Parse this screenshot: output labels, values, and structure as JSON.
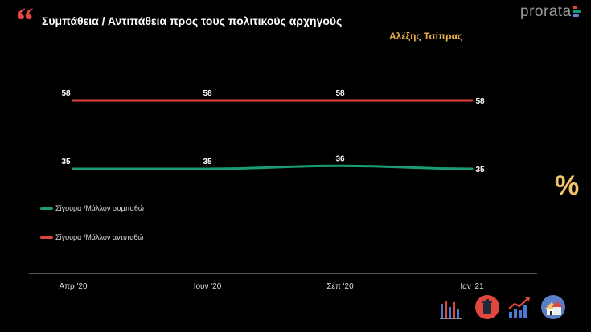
{
  "header": {
    "title": "Συμπάθεια / Αντιπάθεια προς τους πολιτικούς αρχηγούς",
    "subtitle": "Αλέξης Τσίπρας",
    "brand": "prorata"
  },
  "colors": {
    "title": "#ffffff",
    "subtitle": "#e8b04b",
    "quote": "#e0483e",
    "percent": "#f2c46d",
    "axis": "#aaaaaa"
  },
  "chart_data": {
    "type": "line",
    "title": "Συμπάθεια / Αντιπάθεια προς τους πολιτικούς αρχηγούς",
    "subtitle": "Αλέξης Τσίπρας",
    "categories": [
      "Απρ '20",
      "Ιουν '20",
      "Σεπ '20",
      "Ιαν '21"
    ],
    "series": [
      {
        "name": "Σίγουρα /Μάλλον συμπαθώ",
        "values": [
          35,
          35,
          36,
          35
        ],
        "color": "#1a9c78"
      },
      {
        "name": "Σίγουρα /Μάλλον αντιπαθώ",
        "values": [
          58,
          58,
          58,
          58
        ],
        "color": "#e0483e"
      }
    ],
    "grid": false,
    "legend_position": "left",
    "data_labels": true
  },
  "decor": {
    "percent_symbol": "%",
    "icons": [
      "bar-chart-icon",
      "trash-bin-icon",
      "trend-arrow-icon",
      "houses-icon"
    ]
  }
}
